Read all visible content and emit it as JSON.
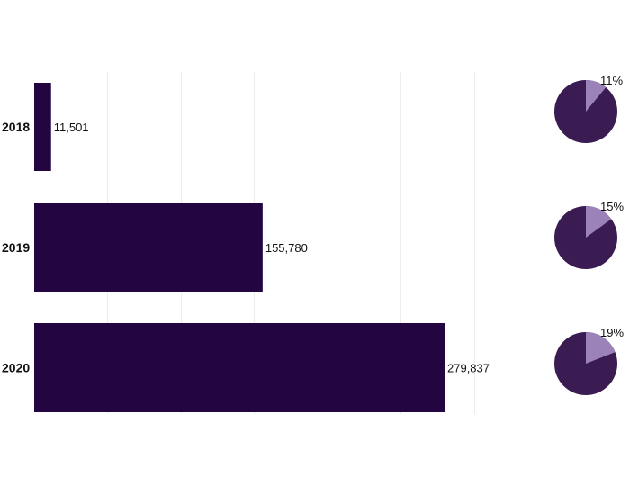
{
  "colors": {
    "bar": "#230542",
    "pie_main": "#3b1c52",
    "pie_slice": "#9b82b8",
    "grid": "#ececec"
  },
  "chart_data": [
    {
      "type": "bar",
      "orientation": "horizontal",
      "categories": [
        "2018",
        "2019",
        "2020"
      ],
      "values": [
        11501,
        155780,
        279837
      ],
      "value_labels": [
        "11,501",
        "155,780",
        "279,837"
      ],
      "title": "",
      "xlabel": "",
      "ylabel": "",
      "xlim": [
        0,
        300000
      ],
      "grid": true,
      "legend": "none"
    },
    {
      "type": "pie",
      "categories": [
        "2018",
        "2019",
        "2020"
      ],
      "values": [
        11,
        15,
        19
      ],
      "labels": [
        "11%",
        "15%",
        "19%"
      ],
      "title": "",
      "legend": "none"
    }
  ]
}
